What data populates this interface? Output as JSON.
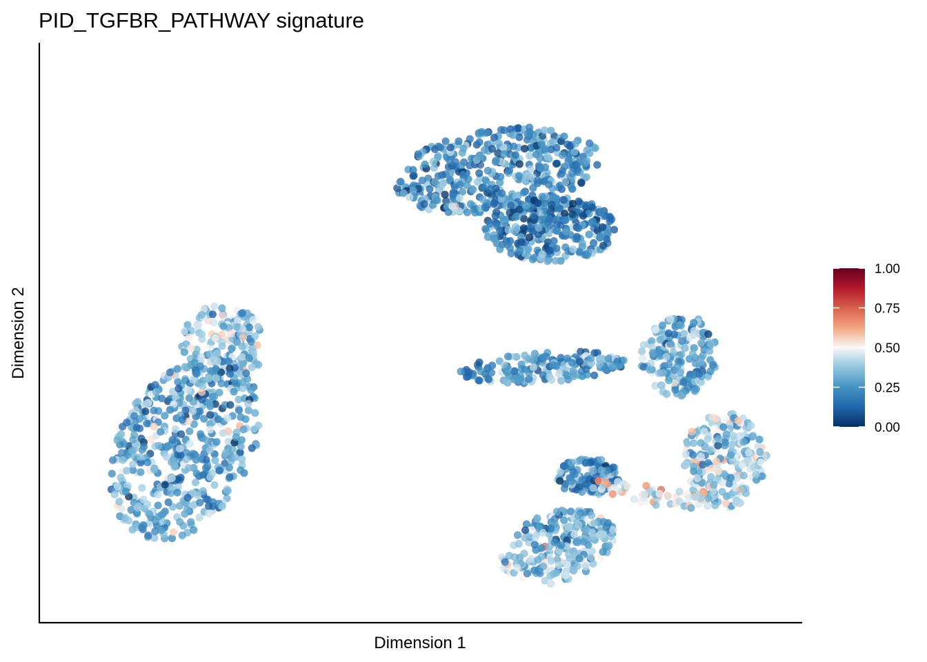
{
  "chart_data": {
    "type": "scatter",
    "title": "PID_TGFBR_PATHWAY signature",
    "xlabel": "Dimension 1",
    "ylabel": "Dimension 2",
    "x_ticks_shown": false,
    "y_ticks_shown": false,
    "grid": false,
    "legend": {
      "type": "colorbar",
      "placement": "right",
      "range": [
        0,
        1
      ],
      "ticks": [
        "0.00",
        "0.25",
        "0.50",
        "0.75",
        "1.00"
      ],
      "palette": [
        "#053061",
        "#2166ac",
        "#4393c3",
        "#92c5de",
        "#f7f7f7",
        "#f4a582",
        "#d6604d",
        "#b2182b",
        "#67001f"
      ]
    },
    "clusters": [
      {
        "name": "",
        "cx": 0.6,
        "cy": 0.78,
        "points": 430,
        "mean_score": 0.22
      },
      {
        "name": "",
        "cx": 0.67,
        "cy": 0.68,
        "points": 300,
        "mean_score": 0.2
      },
      {
        "name": "",
        "cx": 0.24,
        "cy": 0.48,
        "points": 170,
        "mean_score": 0.35
      },
      {
        "name": "",
        "cx": 0.19,
        "cy": 0.3,
        "points": 520,
        "mean_score": 0.28
      },
      {
        "name": "",
        "cx": 0.66,
        "cy": 0.44,
        "points": 170,
        "mean_score": 0.25
      },
      {
        "name": "",
        "cx": 0.84,
        "cy": 0.46,
        "points": 180,
        "mean_score": 0.3
      },
      {
        "name": "",
        "cx": 0.9,
        "cy": 0.28,
        "points": 240,
        "mean_score": 0.4
      },
      {
        "name": "",
        "cx": 0.68,
        "cy": 0.13,
        "points": 230,
        "mean_score": 0.33
      },
      {
        "name": "",
        "cx": 0.72,
        "cy": 0.25,
        "points": 110,
        "mean_score": 0.22
      },
      {
        "name": "",
        "cx": 0.8,
        "cy": 0.22,
        "points": 60,
        "mean_score": 0.5
      }
    ]
  }
}
